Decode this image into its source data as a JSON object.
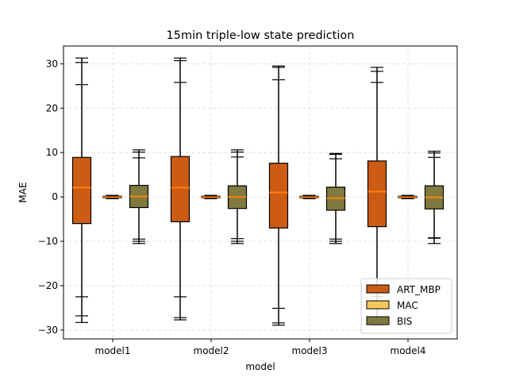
{
  "chart_data": {
    "type": "boxplot",
    "title": "15min triple-low state prediction",
    "xlabel": "model",
    "ylabel": "MAE",
    "categories": [
      "model1",
      "model2",
      "model3",
      "model4"
    ],
    "ylim": [
      -32,
      34
    ],
    "yticks": [
      -30,
      -20,
      -10,
      0,
      10,
      20,
      30
    ],
    "grid": true,
    "legend_position": "lower-right",
    "series": [
      {
        "name": "ART_MBP",
        "color": "#cc5c14",
        "boxes": [
          {
            "whislo": -28.3,
            "cap_lo2": -26.8,
            "cap_lo1": -22.5,
            "q1": -6.0,
            "med": 2.1,
            "q3": 8.9,
            "cap_hi1": 25.3,
            "cap_hi2": 30.3,
            "whishi": 31.3
          },
          {
            "whislo": -27.7,
            "cap_lo2": -27.2,
            "cap_lo1": -22.5,
            "q1": -5.6,
            "med": 2.1,
            "q3": 9.1,
            "cap_hi1": 25.8,
            "cap_hi2": 30.7,
            "whishi": 31.3
          },
          {
            "whislo": -28.9,
            "cap_lo2": -28.4,
            "cap_lo1": -25.1,
            "q1": -7.0,
            "med": 1.0,
            "q3": 7.6,
            "cap_hi1": 26.4,
            "cap_hi2": 29.2,
            "whishi": 29.5
          },
          {
            "whislo": -28.9,
            "cap_lo2": -28.2,
            "cap_lo1": -22.5,
            "q1": -6.7,
            "med": 1.2,
            "q3": 8.1,
            "cap_hi1": 25.8,
            "cap_hi2": 28.3,
            "whishi": 29.2
          }
        ]
      },
      {
        "name": "MAC",
        "color": "#f5c95b",
        "boxes": [
          {
            "whislo": -0.4,
            "cap_lo2": -0.3,
            "cap_lo1": -0.2,
            "q1": -0.2,
            "med": -0.05,
            "q3": 0.15,
            "cap_hi1": 0.2,
            "cap_hi2": 0.3,
            "whishi": 0.35
          },
          {
            "whislo": -0.4,
            "cap_lo2": -0.3,
            "cap_lo1": -0.2,
            "q1": -0.2,
            "med": -0.05,
            "q3": 0.15,
            "cap_hi1": 0.2,
            "cap_hi2": 0.3,
            "whishi": 0.35
          },
          {
            "whislo": -0.4,
            "cap_lo2": -0.3,
            "cap_lo1": -0.2,
            "q1": -0.2,
            "med": -0.05,
            "q3": 0.15,
            "cap_hi1": 0.2,
            "cap_hi2": 0.3,
            "whishi": 0.35
          },
          {
            "whislo": -0.4,
            "cap_lo2": -0.3,
            "cap_lo1": -0.2,
            "q1": -0.2,
            "med": -0.05,
            "q3": 0.15,
            "cap_hi1": 0.2,
            "cap_hi2": 0.3,
            "whishi": 0.35
          }
        ]
      },
      {
        "name": "BIS",
        "color": "#807a40",
        "boxes": [
          {
            "whislo": -10.5,
            "cap_lo2": -10.0,
            "cap_lo1": -9.5,
            "q1": -2.4,
            "med": 0.1,
            "q3": 2.6,
            "cap_hi1": 8.8,
            "cap_hi2": 10.1,
            "whishi": 10.6
          },
          {
            "whislo": -10.5,
            "cap_lo2": -10.0,
            "cap_lo1": -9.4,
            "q1": -2.6,
            "med": 0.0,
            "q3": 2.5,
            "cap_hi1": 9.0,
            "cap_hi2": 10.1,
            "whishi": 10.6
          },
          {
            "whislo": -10.5,
            "cap_lo2": -10.0,
            "cap_lo1": -9.5,
            "q1": -3.0,
            "med": -0.3,
            "q3": 2.2,
            "cap_hi1": 8.6,
            "cap_hi2": 9.6,
            "whishi": 9.8
          },
          {
            "whislo": -10.5,
            "cap_lo2": -9.3,
            "cap_lo1": -9.2,
            "q1": -2.7,
            "med": -0.1,
            "q3": 2.5,
            "cap_hi1": 8.9,
            "cap_hi2": 9.9,
            "whishi": 10.3
          }
        ]
      }
    ]
  }
}
